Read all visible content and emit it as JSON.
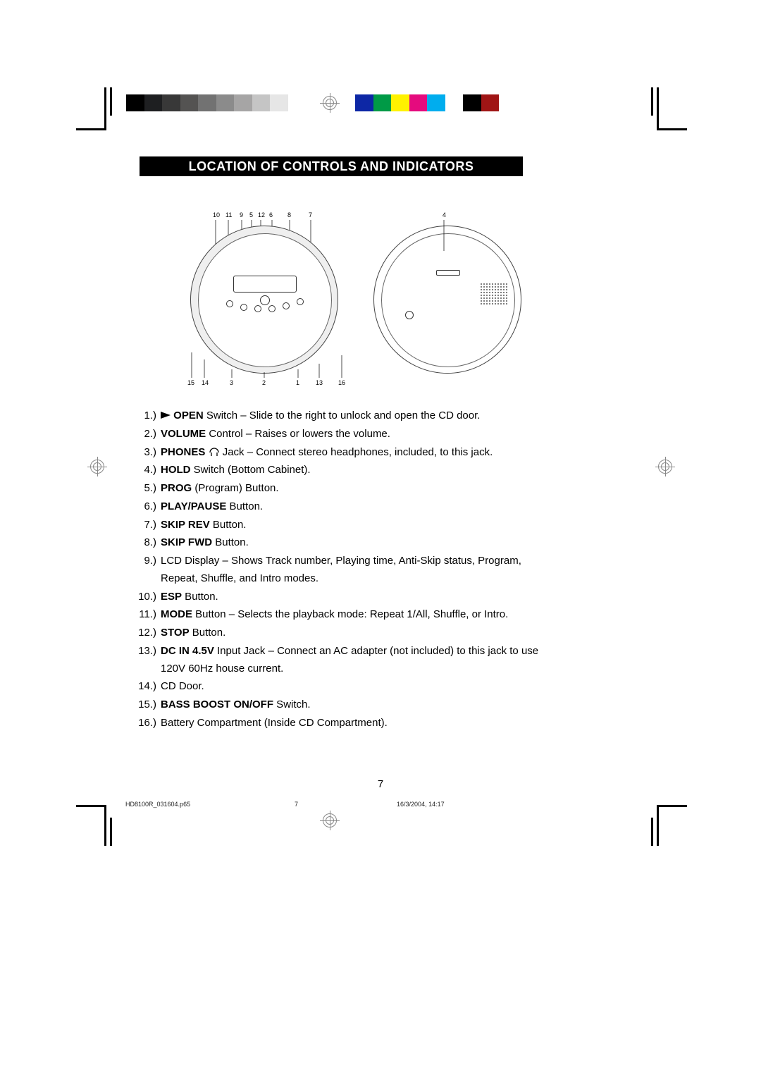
{
  "header": {
    "title": "LOCATION OF CONTROLS AND INDICATORS"
  },
  "graybar_colors": [
    "#000000",
    "#1e1f21",
    "#383838",
    "#545352",
    "#727272",
    "#8b8b8b",
    "#a6a5a5",
    "#c5c5c5",
    "#e6e6e6",
    "#ffffff"
  ],
  "colorbar_colors": [
    "#0d27a5",
    "#009a46",
    "#fff200",
    "#e50b7e",
    "#00adee",
    "#ffffff",
    "#000000",
    "#a01515"
  ],
  "diagram": {
    "top_labels": [
      "10",
      "11",
      "9",
      "5",
      "12",
      "6",
      "8",
      "7"
    ],
    "bottom_labels": [
      "15",
      "14",
      "3",
      "2",
      "1",
      "13",
      "16"
    ],
    "right_label": "4"
  },
  "items": [
    {
      "n": "1.)",
      "bold": "OPEN",
      "rest": " Switch – Slide to the right to unlock and open the CD door.",
      "arrow": true
    },
    {
      "n": "2.)",
      "bold": "VOLUME",
      "rest": " Control – Raises or lowers the volume."
    },
    {
      "n": "3.)",
      "bold": "PHONES",
      "rest": " Jack – Connect stereo headphones, included, to this jack.",
      "phones_icon": true
    },
    {
      "n": "4.)",
      "bold": "HOLD",
      "rest": " Switch (Bottom Cabinet)."
    },
    {
      "n": "5.)",
      "bold": "PROG",
      "rest": " (Program) Button."
    },
    {
      "n": "6.)",
      "bold": "PLAY/PAUSE",
      "rest": " Button."
    },
    {
      "n": "7.)",
      "bold": "SKIP REV",
      "rest": " Button."
    },
    {
      "n": "8.)",
      "bold": "SKIP FWD",
      "rest": " Button."
    },
    {
      "n": "9.)",
      "bold": "",
      "rest": "LCD Display – Shows Track number, Playing time, Anti-Skip status, Program, Repeat, Shuffle, and Intro modes."
    },
    {
      "n": "10.)",
      "bold": "ESP",
      "rest": " Button."
    },
    {
      "n": "11.)",
      "bold": "MODE",
      "rest": " Button – Selects the playback mode: Repeat 1/All, Shuffle, or Intro."
    },
    {
      "n": "12.)",
      "bold": "STOP",
      "rest": " Button."
    },
    {
      "n": "13.)",
      "bold": "DC IN 4.5V",
      "rest": " Input Jack – Connect an AC adapter (not included) to this jack to use 120V 60Hz house current."
    },
    {
      "n": "14.)",
      "bold": "",
      "rest": "CD Door."
    },
    {
      "n": "15.)",
      "bold": "BASS BOOST ON/OFF",
      "rest": " Switch."
    },
    {
      "n": "16.)",
      "bold": "",
      "rest": "Battery Compartment (Inside CD Compartment)."
    }
  ],
  "page_number": "7",
  "footer": {
    "filename": "HD8100R_031604.p65",
    "page": "7",
    "datetime": "16/3/2004, 14:17"
  }
}
